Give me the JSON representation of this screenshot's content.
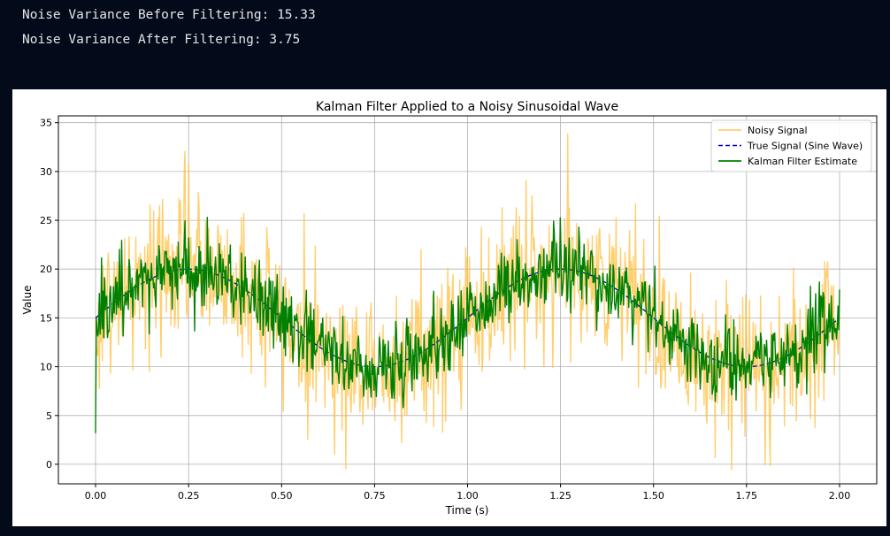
{
  "console": {
    "line1": "Noise Variance Before Filtering: 15.33",
    "line2": "Noise Variance After Filtering: 3.75",
    "background": "#030a1a",
    "text_color": "#e6e6e6"
  },
  "chart_data": {
    "type": "line",
    "title": "Kalman Filter Applied to a Noisy Sinusoidal Wave",
    "xlabel": "Time (s)",
    "ylabel": "Value",
    "xlim": [
      -0.1,
      2.1
    ],
    "ylim": [
      -2.0,
      35.7
    ],
    "xticks": [
      0.0,
      0.25,
      0.5,
      0.75,
      1.0,
      1.25,
      1.5,
      1.75,
      2.0
    ],
    "xtick_labels": [
      "0.00",
      "0.25",
      "0.50",
      "0.75",
      "1.00",
      "1.25",
      "1.50",
      "1.75",
      "2.00"
    ],
    "yticks": [
      0,
      5,
      10,
      15,
      20,
      25,
      30,
      35
    ],
    "ytick_labels": [
      "0",
      "5",
      "10",
      "15",
      "20",
      "25",
      "30",
      "35"
    ],
    "grid": true,
    "legend_position": "top-right",
    "series": [
      {
        "name": "Noisy Signal",
        "color": "#ffbf40",
        "style": "solid",
        "description_points": {
          "x": [
            0.0,
            0.24,
            0.25,
            0.5,
            0.75,
            1.0,
            1.27,
            1.5,
            1.71,
            1.8,
            2.0
          ],
          "y": [
            15,
            32.1,
            30.8,
            14,
            10,
            15,
            33.9,
            15,
            -0.6,
            -0.1,
            15
          ]
        }
      },
      {
        "name": "True Signal (Sine Wave)",
        "color": "#0000cc",
        "style": "dashed",
        "x": [
          0.0,
          0.125,
          0.25,
          0.375,
          0.5,
          0.625,
          0.75,
          0.875,
          1.0,
          1.125,
          1.25,
          1.375,
          1.5,
          1.625,
          1.75,
          1.875,
          2.0
        ],
        "y": [
          15.0,
          18.54,
          20.0,
          18.54,
          15.0,
          11.46,
          10.0,
          11.46,
          15.0,
          18.54,
          20.0,
          18.54,
          15.0,
          11.46,
          10.0,
          11.46,
          15.0
        ]
      },
      {
        "name": "Kalman Filter Estimate",
        "color": "#008000",
        "style": "solid",
        "description_points": {
          "x": [
            0.0,
            0.002,
            0.24,
            0.75,
            1.25,
            1.75,
            2.0
          ],
          "y": [
            3.2,
            15.0,
            25.0,
            10.0,
            25.3,
            10.0,
            17.9
          ]
        }
      }
    ],
    "model": {
      "amplitude": 5,
      "offset": 15,
      "frequency_hz": 1,
      "samples": 1000,
      "noise_variance_before": 15.33,
      "noise_variance_after": 3.75
    }
  }
}
